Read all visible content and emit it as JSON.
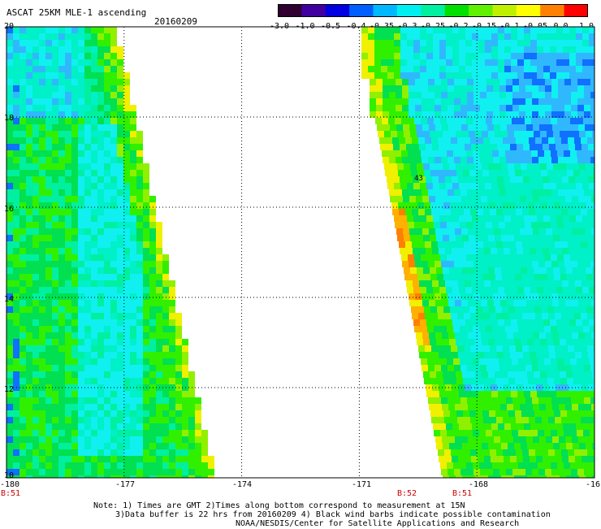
{
  "header": {
    "title": "ASCAT 25KM MLE-1 ascending",
    "date": "20160209"
  },
  "colorbar": {
    "labels": [
      "-3.0",
      "-1.0",
      "-0.5",
      "-0.4",
      "-0.35",
      "-0.3",
      "-0.25",
      "-0.2",
      "-0.15",
      "-0.1",
      "-0.05",
      "0.0",
      "1.0"
    ],
    "colors": [
      "#300030",
      "#4000a0",
      "#0000e0",
      "#0060ff",
      "#00b8ff",
      "#00f0f0",
      "#00f0a0",
      "#00e000",
      "#60f000",
      "#c0f000",
      "#ffff00",
      "#ff8000",
      "#ff0000"
    ]
  },
  "axes": {
    "x_ticks": [
      "-180",
      "-177",
      "-174",
      "-171",
      "-168",
      "-16"
    ],
    "y_ticks": [
      "20",
      "18",
      "16",
      "14",
      "12",
      "10"
    ],
    "lon_range": [
      -180,
      -165
    ],
    "lat_range": [
      10,
      20
    ]
  },
  "pass_times": [
    {
      "label": "B:51",
      "lon": -180
    },
    {
      "label": "B:52",
      "lon": -169.5
    },
    {
      "label": "B:51",
      "lon": -168
    }
  ],
  "barb": {
    "label": "43"
  },
  "notes": {
    "line1": "Note: 1) Times are GMT 2)Times along bottom correspond to measurement at 15N",
    "line2": "3)Data buffer is 22 hrs from 20160209 4) Black wind barbs indicate possible contamination",
    "line3": "NOAA/NESDIS/Center for Satellite Applications and Research"
  }
}
